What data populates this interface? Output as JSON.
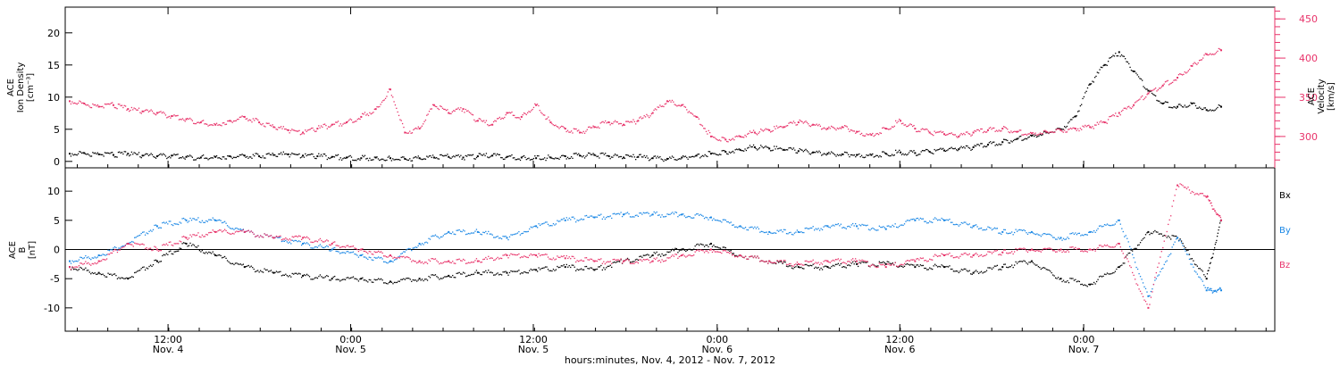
{
  "colors": {
    "black": "#000000",
    "pink": "#e8336a",
    "blue": "#1a87e5"
  },
  "chart_data": [
    {
      "type": "scatter",
      "panel": "top",
      "ylabel_lines": [
        "ACE",
        "Ion Density",
        "[cm⁻³]"
      ],
      "ylim": [
        -1,
        24
      ],
      "yticks": [
        0,
        5,
        10,
        15,
        20
      ],
      "right_ylabel_lines": [
        "ACE",
        "Velocity",
        "[km/s]"
      ],
      "right_ylim": [
        260,
        465
      ],
      "right_yticks": [
        300,
        350,
        400,
        450
      ],
      "series": [
        {
          "axis": "left",
          "color": "#000000",
          "x": [
            0,
            1,
            2,
            3,
            4,
            5,
            6,
            7,
            8,
            9,
            10,
            11,
            12,
            13,
            14,
            15,
            16,
            17,
            18,
            19,
            20,
            21,
            22,
            23,
            24,
            25,
            26,
            27,
            28,
            29,
            30,
            31,
            32,
            33,
            34,
            35,
            36,
            37,
            38,
            39,
            40,
            41,
            42,
            43,
            44,
            45,
            46,
            47,
            48,
            49,
            50,
            51,
            52,
            53,
            54,
            55,
            56,
            57,
            58,
            59,
            60,
            61,
            62,
            63,
            64,
            65,
            66,
            67,
            68,
            69,
            70,
            71,
            72,
            73,
            74,
            75,
            76,
            77,
            78,
            79
          ],
          "y": [
            1.2,
            1.3,
            1.1,
            1.0,
            1.2,
            0.9,
            0.8,
            0.9,
            0.7,
            0.6,
            0.7,
            0.8,
            0.9,
            0.8,
            1.0,
            1.1,
            0.9,
            0.8,
            0.7,
            0.6,
            0.5,
            0.6,
            0.5,
            0.4,
            0.5,
            0.6,
            0.7,
            0.6,
            0.8,
            0.9,
            0.7,
            0.6,
            0.5,
            0.6,
            0.8,
            0.9,
            1.0,
            0.8,
            0.6,
            0.7,
            0.5,
            0.4,
            0.6,
            0.9,
            1.2,
            1.5,
            1.8,
            2.2,
            2.0,
            1.8,
            1.6,
            1.4,
            1.2,
            1.1,
            1.0,
            1.0,
            1.2,
            1.4,
            1.3,
            1.5,
            1.7,
            1.9,
            2.2,
            2.6,
            3.0,
            3.5,
            4.0,
            4.5,
            5.0,
            7.0,
            12.0,
            15.0,
            17.0,
            14.0,
            11.0,
            9.0,
            8.5,
            9.0,
            8.0,
            8.5
          ]
        },
        {
          "axis": "right",
          "color": "#e8336a",
          "x": [
            0,
            1,
            2,
            3,
            4,
            5,
            6,
            7,
            8,
            9,
            10,
            11,
            12,
            13,
            14,
            15,
            16,
            17,
            18,
            19,
            20,
            21,
            22,
            23,
            24,
            25,
            26,
            27,
            28,
            29,
            30,
            31,
            32,
            33,
            34,
            35,
            36,
            37,
            38,
            39,
            40,
            41,
            42,
            43,
            44,
            45,
            46,
            47,
            48,
            49,
            50,
            51,
            52,
            53,
            54,
            55,
            56,
            57,
            58,
            59,
            60,
            61,
            62,
            63,
            64,
            65,
            66,
            67,
            68,
            69,
            70,
            71,
            72,
            73,
            74,
            75,
            76,
            77,
            78,
            79
          ],
          "y": [
            345,
            342,
            338,
            340,
            335,
            332,
            330,
            326,
            322,
            318,
            315,
            320,
            325,
            318,
            312,
            308,
            305,
            310,
            315,
            318,
            325,
            335,
            360,
            305,
            310,
            340,
            330,
            335,
            320,
            315,
            330,
            325,
            340,
            318,
            310,
            305,
            312,
            318,
            315,
            320,
            330,
            345,
            340,
            325,
            300,
            296,
            300,
            305,
            308,
            312,
            318,
            315,
            310,
            312,
            306,
            302,
            310,
            320,
            310,
            305,
            303,
            300,
            305,
            308,
            310,
            306,
            304,
            306,
            308,
            310,
            312,
            318,
            330,
            340,
            355,
            365,
            375,
            390,
            405,
            410
          ]
        }
      ]
    },
    {
      "type": "scatter",
      "panel": "bottom",
      "ylabel_lines": [
        "ACE",
        "B",
        "[nT]"
      ],
      "ylim": [
        -14,
        14
      ],
      "yticks": [
        -10,
        -5,
        0,
        5,
        10
      ],
      "series": [
        {
          "name": "Bx",
          "color": "#000000",
          "x": [
            0,
            2,
            4,
            6,
            8,
            10,
            12,
            14,
            16,
            18,
            20,
            22,
            24,
            26,
            28,
            30,
            32,
            34,
            36,
            38,
            40,
            42,
            44,
            46,
            48,
            50,
            52,
            54,
            56,
            58,
            60,
            62,
            64,
            66,
            68,
            70,
            72,
            74,
            76,
            78,
            79
          ],
          "y": [
            -3,
            -4,
            -5,
            -2,
            1,
            -1,
            -3,
            -4,
            -4.5,
            -5,
            -5,
            -5.5,
            -5,
            -4.5,
            -4,
            -4,
            -3.5,
            -3,
            -3.5,
            -2,
            -1,
            0,
            1,
            -1,
            -2,
            -3,
            -3,
            -2.5,
            -2.5,
            -3,
            -3,
            -4,
            -3,
            -2,
            -5,
            -6,
            -3,
            3,
            2,
            -5,
            5
          ]
        },
        {
          "name": "By",
          "color": "#1a87e5",
          "x": [
            0,
            2,
            4,
            6,
            8,
            10,
            12,
            14,
            16,
            18,
            20,
            22,
            24,
            26,
            28,
            30,
            32,
            34,
            36,
            38,
            40,
            42,
            44,
            46,
            48,
            50,
            52,
            54,
            56,
            58,
            60,
            62,
            64,
            66,
            68,
            70,
            72,
            74,
            76,
            78,
            79
          ],
          "y": [
            -2,
            -1,
            1,
            4,
            5,
            5,
            3,
            2,
            1,
            0,
            -1,
            -2,
            1,
            3,
            3,
            2,
            4,
            5,
            5.5,
            6,
            6,
            6,
            5.5,
            4,
            3,
            3,
            4,
            4,
            3.5,
            5,
            5,
            4,
            3,
            3,
            2,
            3,
            5,
            -8,
            2,
            -7,
            -7
          ]
        },
        {
          "name": "Bz",
          "color": "#e8336a",
          "x": [
            0,
            2,
            4,
            6,
            8,
            10,
            12,
            14,
            16,
            18,
            20,
            22,
            24,
            26,
            28,
            30,
            32,
            34,
            36,
            38,
            40,
            42,
            44,
            46,
            48,
            50,
            52,
            54,
            56,
            58,
            60,
            62,
            64,
            66,
            68,
            70,
            72,
            74,
            76,
            78,
            79
          ],
          "y": [
            -3,
            -2,
            1,
            0,
            2,
            3,
            3,
            2,
            2,
            1,
            0,
            -1,
            -2,
            -2,
            -2,
            -1,
            -1,
            -1.5,
            -2,
            -2,
            -2,
            -1,
            0,
            -1,
            -2,
            -2.5,
            -2,
            -2,
            -3,
            -2,
            -1,
            -1,
            -0.5,
            0,
            0,
            0,
            1,
            -10,
            11,
            9,
            5
          ]
        }
      ]
    }
  ],
  "legend": {
    "bx": "Bx",
    "by": "By",
    "bz": "Bz"
  },
  "x_axis": {
    "ticks": [
      {
        "frac": 0.085,
        "line1": "12:00",
        "line2": "Nov. 4"
      },
      {
        "frac": 0.236,
        "line1": "0:00",
        "line2": "Nov. 5"
      },
      {
        "frac": 0.387,
        "line1": "12:00",
        "line2": "Nov. 5"
      },
      {
        "frac": 0.539,
        "line1": "0:00",
        "line2": "Nov. 6"
      },
      {
        "frac": 0.69,
        "line1": "12:00",
        "line2": "Nov. 6"
      },
      {
        "frac": 0.842,
        "line1": "0:00",
        "line2": "Nov. 7"
      }
    ],
    "title": "hours:minutes, Nov.  4, 2012 - Nov.  7, 2012"
  }
}
